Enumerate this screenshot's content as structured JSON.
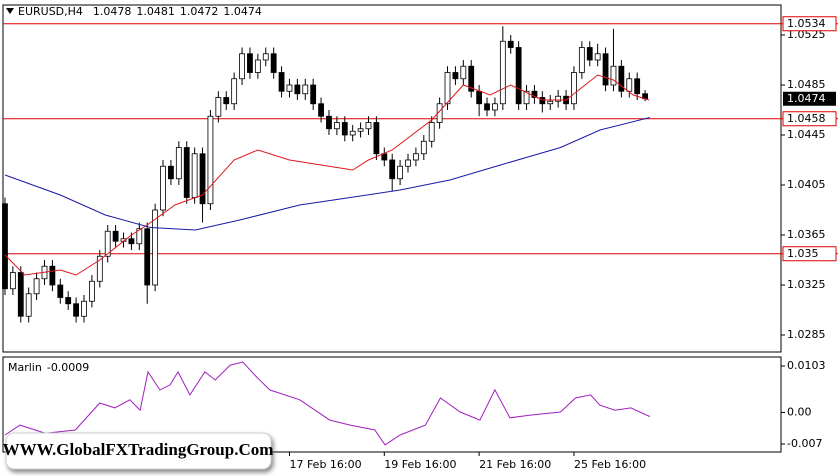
{
  "chart_data": [
    {
      "type": "candlestick",
      "title": "EURUSD,H4",
      "open": [
        1.039,
        1.0322,
        1.0335,
        1.03,
        1.0318,
        1.033,
        1.034,
        1.0325,
        1.0315,
        1.031,
        1.03,
        1.0312,
        1.0328,
        1.0348,
        1.0368,
        1.036,
        1.0362,
        1.0358,
        1.037,
        1.0325,
        1.0385,
        1.042,
        1.041,
        1.0435,
        1.0395,
        1.043,
        1.039,
        1.046,
        1.0475,
        1.047,
        1.049,
        1.051,
        1.0495,
        1.0505,
        1.051,
        1.0495,
        1.048,
        1.0485,
        1.0478,
        1.0485,
        1.047,
        1.046,
        1.045,
        1.0455,
        1.0445,
        1.0448,
        1.045,
        1.0455,
        1.043,
        1.0425,
        1.041,
        1.042,
        1.0425,
        1.043,
        1.044,
        1.0455,
        1.047,
        1.0495,
        1.049,
        1.05,
        1.048,
        1.047,
        1.0465,
        1.047,
        1.052,
        1.0515,
        1.047,
        1.048,
        1.0475,
        1.047,
        1.0472,
        1.0476,
        1.047,
        1.0495,
        1.0515,
        1.0505,
        1.051,
        1.0485,
        1.05,
        1.048,
        1.049,
        1.0478
      ],
      "high": [
        1.0395,
        1.034,
        1.034,
        1.0323,
        1.0335,
        1.0345,
        1.0345,
        1.033,
        1.032,
        1.0315,
        1.0317,
        1.0333,
        1.0353,
        1.0373,
        1.0373,
        1.0367,
        1.0367,
        1.0375,
        1.0375,
        1.039,
        1.0425,
        1.0425,
        1.044,
        1.044,
        1.0435,
        1.0435,
        1.0465,
        1.048,
        1.048,
        1.0495,
        1.0515,
        1.0515,
        1.051,
        1.0515,
        1.0515,
        1.05,
        1.049,
        1.049,
        1.049,
        1.049,
        1.0475,
        1.0465,
        1.046,
        1.046,
        1.0453,
        1.0455,
        1.046,
        1.046,
        1.0435,
        1.043,
        1.0425,
        1.043,
        1.0435,
        1.0445,
        1.046,
        1.0475,
        1.05,
        1.05,
        1.0505,
        1.0505,
        1.0485,
        1.0475,
        1.0475,
        1.0532,
        1.0525,
        1.052,
        1.0485,
        1.0485,
        1.048,
        1.0477,
        1.0481,
        1.0481,
        1.05,
        1.052,
        1.052,
        1.0518,
        1.0515,
        1.053,
        1.0505,
        1.0495,
        1.0495,
        1.0481
      ],
      "low": [
        1.0317,
        1.0317,
        1.0295,
        1.0295,
        1.0313,
        1.0325,
        1.032,
        1.031,
        1.0305,
        1.0295,
        1.0295,
        1.0307,
        1.0323,
        1.0343,
        1.0355,
        1.0355,
        1.0353,
        1.0353,
        1.031,
        1.032,
        1.038,
        1.0405,
        1.0405,
        1.039,
        1.039,
        1.0375,
        1.0385,
        1.0455,
        1.0465,
        1.0465,
        1.0485,
        1.049,
        1.049,
        1.05,
        1.049,
        1.0475,
        1.0475,
        1.0473,
        1.0473,
        1.0465,
        1.0455,
        1.0445,
        1.0445,
        1.044,
        1.044,
        1.0443,
        1.0445,
        1.0425,
        1.042,
        1.04,
        1.0405,
        1.0415,
        1.042,
        1.0425,
        1.0435,
        1.045,
        1.0465,
        1.0485,
        1.0485,
        1.0475,
        1.046,
        1.046,
        1.046,
        1.0465,
        1.051,
        1.0465,
        1.0465,
        1.047,
        1.0463,
        1.0465,
        1.0467,
        1.0465,
        1.0465,
        1.049,
        1.05,
        1.05,
        1.048,
        1.048,
        1.0475,
        1.0475,
        1.0473,
        1.0472
      ],
      "close": [
        1.0322,
        1.0335,
        1.03,
        1.0318,
        1.033,
        1.034,
        1.0325,
        1.0315,
        1.031,
        1.03,
        1.0312,
        1.0328,
        1.0348,
        1.0368,
        1.036,
        1.0362,
        1.0358,
        1.037,
        1.0325,
        1.0385,
        1.042,
        1.041,
        1.0435,
        1.0395,
        1.043,
        1.039,
        1.046,
        1.0475,
        1.047,
        1.049,
        1.051,
        1.0495,
        1.0505,
        1.051,
        1.0495,
        1.048,
        1.0485,
        1.0478,
        1.0485,
        1.047,
        1.046,
        1.045,
        1.0455,
        1.0445,
        1.0448,
        1.045,
        1.0455,
        1.043,
        1.0425,
        1.041,
        1.042,
        1.0425,
        1.043,
        1.044,
        1.0455,
        1.047,
        1.0495,
        1.049,
        1.05,
        1.048,
        1.047,
        1.0465,
        1.047,
        1.052,
        1.0515,
        1.047,
        1.048,
        1.0475,
        1.047,
        1.0472,
        1.0476,
        1.047,
        1.0495,
        1.0515,
        1.0505,
        1.051,
        1.0485,
        1.05,
        1.048,
        1.049,
        1.0478,
        1.0474
      ],
      "series": [
        {
          "color": "#e0161b",
          "x": [
            0,
            2.5,
            7,
            9,
            12,
            16,
            18,
            21.5,
            25,
            29,
            32,
            36,
            40,
            44,
            46,
            49,
            54,
            58,
            61.4,
            64,
            68,
            71,
            75,
            77,
            79.5,
            81.5
          ],
          "values": [
            1.0349,
            1.0333,
            1.0337,
            1.0333,
            1.0345,
            1.0365,
            1.0373,
            1.0389,
            1.0397,
            1.0425,
            1.0433,
            1.0425,
            1.0421,
            1.0417,
            1.0425,
            1.0433,
            1.0457,
            1.0485,
            1.0477,
            1.0485,
            1.0473,
            1.0473,
            1.0493,
            1.0489,
            1.0477,
            1.0473
          ]
        },
        {
          "color": "#1a1aa8",
          "x": [
            0,
            7,
            12.7,
            18.4,
            24.1,
            29.7,
            37.3,
            43.7,
            50,
            56.3,
            62.7,
            70.3,
            75.3,
            81.6
          ],
          "values": [
            1.0413,
            1.0397,
            1.0381,
            1.0371,
            1.0369,
            1.0377,
            1.0389,
            1.0395,
            1.0401,
            1.0409,
            1.0421,
            1.0435,
            1.0449,
            1.0459
          ]
        }
      ],
      "hlines": [
        {
          "value": 1.0534,
          "color": "#e00000"
        },
        {
          "value": 1.0458,
          "color": "#e00000"
        },
        {
          "value": 1.035,
          "color": "#e00000"
        }
      ],
      "xlim": [
        -0.25,
        98.2
      ],
      "xticks": [
        {
          "value": 36,
          "label": "17 Feb 16:00"
        },
        {
          "value": 48,
          "label": "19 Feb 16:00"
        },
        {
          "value": 60,
          "label": "21 Feb 16:00"
        },
        {
          "value": 72,
          "label": "25 Feb 16:00"
        }
      ],
      "ylim": [
        1.02714,
        1.0549
      ],
      "yticks": [
        1.0525,
        1.0485,
        1.0445,
        1.0405,
        1.0365,
        1.0325,
        1.0285
      ]
    },
    {
      "type": "line",
      "title": "Marlin",
      "series": [
        {
          "color": "#a020c0",
          "x": [
            0,
            1.9,
            5.1,
            8.9,
            12,
            13.9,
            15.8,
            17.1,
            18.1,
            19.6,
            20.9,
            21.9,
            23.4,
            25.3,
            26.6,
            28.5,
            30.1,
            31.6,
            33.5,
            37.3,
            41.1,
            43.7,
            46.8,
            48.1,
            50,
            53.2,
            55.1,
            57.6,
            60.1,
            62,
            63.9,
            66.5,
            70.3,
            72.2,
            74.1,
            75.3,
            77.2,
            79.2,
            81.6
          ],
          "values": [
            -0.005,
            -0.0028,
            -0.0046,
            -0.0039,
            0.0021,
            0.001,
            0.0028,
            0.0005,
            0.009,
            0.005,
            0.0061,
            0.009,
            0.0039,
            0.009,
            0.0072,
            0.0105,
            0.0112,
            0.0083,
            0.005,
            0.0028,
            -0.0017,
            -0.0028,
            -0.0039,
            -0.0072,
            -0.005,
            -0.0028,
            0.0032,
            0.0001,
            -0.0017,
            0.005,
            -0.0012,
            -0.0006,
            0.0001,
            0.0032,
            0.0039,
            0.0016,
            0.0005,
            0.001,
            -0.0009
          ]
        }
      ],
      "ylim": [
        -0.00878,
        0.0123
      ],
      "yticks": [
        0.0103,
        {
          "value": 0,
          "label": "0.00"
        },
        -0.007
      ]
    }
  ],
  "watermark": "WWW.GlobalFXTradingGroup.Com"
}
